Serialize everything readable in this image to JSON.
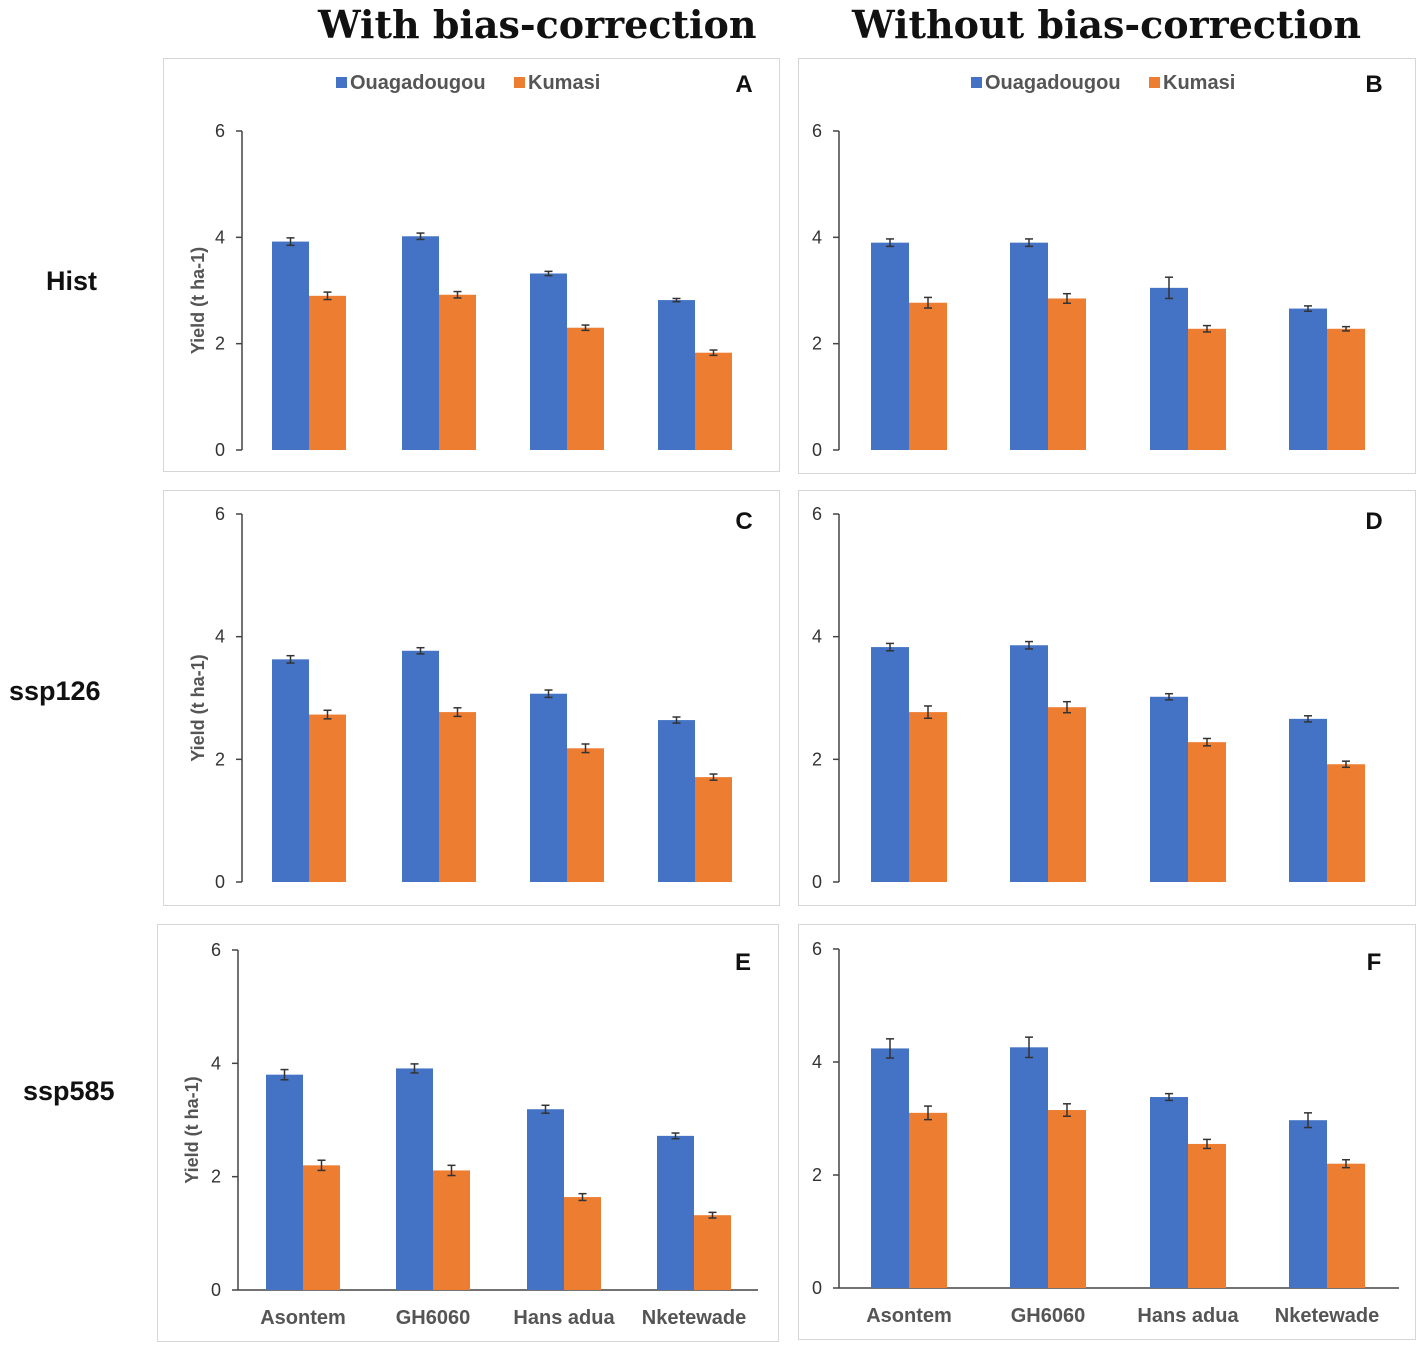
{
  "column_titles": [
    "With bias-correction",
    "Without bias-correction"
  ],
  "row_labels": [
    "Hist",
    "ssp126",
    "ssp585"
  ],
  "colors": {
    "ouagadougou": "#4472C4",
    "kumasi": "#ED7D31"
  },
  "legend": [
    "Ouagadougou",
    "Kumasi"
  ],
  "chart_data": [
    {
      "type": "bar",
      "letter": "A",
      "ylabel": "Yield (t ha-1)",
      "ylim": [
        0,
        6
      ],
      "yticks": [
        0,
        2,
        4,
        6
      ],
      "categories": [
        "Asontem",
        "GH6060",
        "Hans adua",
        "Nketewade"
      ],
      "series": [
        {
          "name": "Ouagadougou",
          "values": [
            3.92,
            4.02,
            3.32,
            2.82
          ],
          "errors": [
            0.07,
            0.06,
            0.04,
            0.03
          ]
        },
        {
          "name": "Kumasi",
          "values": [
            2.9,
            2.92,
            2.3,
            1.83
          ],
          "errors": [
            0.07,
            0.06,
            0.05,
            0.05
          ]
        }
      ]
    },
    {
      "type": "bar",
      "letter": "B",
      "ylabel": "",
      "ylim": [
        0,
        6
      ],
      "yticks": [
        0,
        2,
        4,
        6
      ],
      "categories": [
        "Asontem",
        "GH6060",
        "Hans adua",
        "Nketewade"
      ],
      "series": [
        {
          "name": "Ouagadougou",
          "values": [
            3.9,
            3.9,
            3.05,
            2.66
          ],
          "errors": [
            0.07,
            0.07,
            0.2,
            0.05
          ]
        },
        {
          "name": "Kumasi",
          "values": [
            2.77,
            2.85,
            2.28,
            2.28
          ],
          "errors": [
            0.1,
            0.09,
            0.06,
            0.04
          ]
        }
      ]
    },
    {
      "type": "bar",
      "letter": "C",
      "ylabel": "Yield (t ha-1)",
      "ylim": [
        0,
        6
      ],
      "yticks": [
        0,
        2,
        4,
        6
      ],
      "categories": [
        "Asontem",
        "GH6060",
        "Hans adua",
        "Nketewade"
      ],
      "series": [
        {
          "name": "Ouagadougou",
          "values": [
            3.63,
            3.77,
            3.07,
            2.64
          ],
          "errors": [
            0.06,
            0.05,
            0.06,
            0.05
          ]
        },
        {
          "name": "Kumasi",
          "values": [
            2.73,
            2.77,
            2.18,
            1.71
          ],
          "errors": [
            0.07,
            0.07,
            0.07,
            0.05
          ]
        }
      ]
    },
    {
      "type": "bar",
      "letter": "D",
      "ylabel": "",
      "ylim": [
        0,
        6
      ],
      "yticks": [
        0,
        2,
        4,
        6
      ],
      "categories": [
        "Asontem",
        "GH6060",
        "Hans adua",
        "Nketewade"
      ],
      "series": [
        {
          "name": "Ouagadougou",
          "values": [
            3.83,
            3.86,
            3.02,
            2.66
          ],
          "errors": [
            0.06,
            0.06,
            0.05,
            0.05
          ]
        },
        {
          "name": "Kumasi",
          "values": [
            2.77,
            2.85,
            2.28,
            1.92
          ],
          "errors": [
            0.1,
            0.09,
            0.06,
            0.05
          ]
        }
      ]
    },
    {
      "type": "bar",
      "letter": "E",
      "ylabel": "Yield (t ha-1)",
      "ylim": [
        0,
        6
      ],
      "yticks": [
        0,
        2,
        4,
        6
      ],
      "categories": [
        "Asontem",
        "GH6060",
        "Hans adua",
        "Nketewade"
      ],
      "series": [
        {
          "name": "Ouagadougou",
          "values": [
            3.8,
            3.91,
            3.19,
            2.72
          ],
          "errors": [
            0.09,
            0.08,
            0.07,
            0.05
          ]
        },
        {
          "name": "Kumasi",
          "values": [
            2.2,
            2.11,
            1.64,
            1.32
          ],
          "errors": [
            0.09,
            0.09,
            0.06,
            0.05
          ]
        }
      ]
    },
    {
      "type": "bar",
      "letter": "F",
      "ylabel": "",
      "ylim": [
        0,
        6
      ],
      "yticks": [
        0,
        2,
        4,
        6
      ],
      "categories": [
        "Asontem",
        "GH6060",
        "Hans adua",
        "Nketewade"
      ],
      "series": [
        {
          "name": "Ouagadougou",
          "values": [
            4.24,
            4.26,
            3.38,
            2.97
          ],
          "errors": [
            0.17,
            0.18,
            0.06,
            0.13
          ]
        },
        {
          "name": "Kumasi",
          "values": [
            3.1,
            3.15,
            2.55,
            2.2
          ],
          "errors": [
            0.12,
            0.11,
            0.08,
            0.07
          ]
        }
      ]
    }
  ]
}
